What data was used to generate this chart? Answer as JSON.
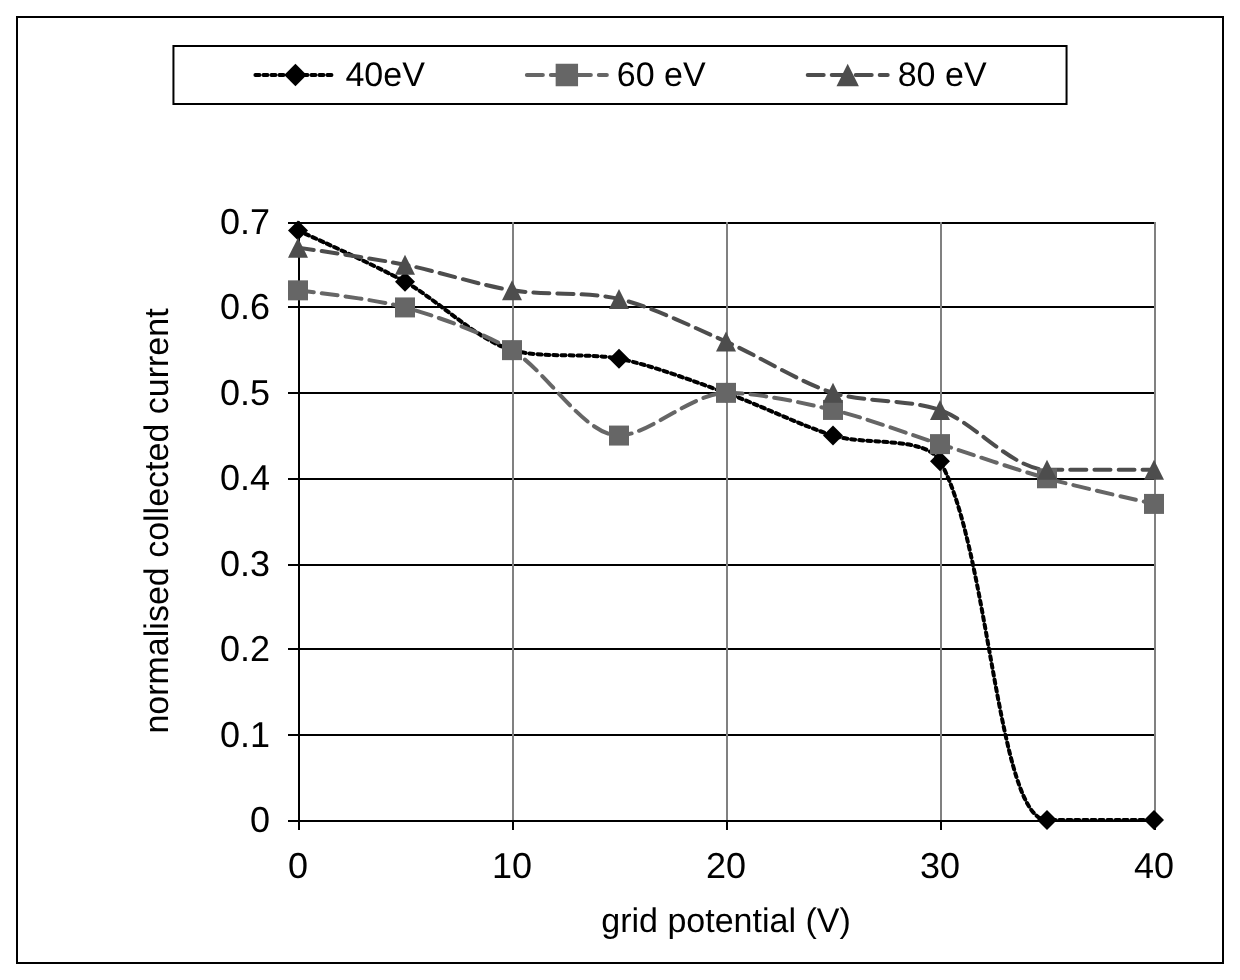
{
  "chart_data": {
    "type": "line",
    "xlabel": "grid potential (V)",
    "ylabel": "normalised collected current",
    "x": [
      0,
      5,
      10,
      15,
      20,
      25,
      30,
      35,
      40
    ],
    "series": [
      {
        "name": "40eV",
        "color": "#000000",
        "marker": "diamond",
        "line_style": "dotted",
        "values": [
          0.69,
          0.63,
          0.55,
          0.54,
          0.5,
          0.45,
          0.42,
          0,
          0
        ]
      },
      {
        "name": "60 eV",
        "color": "#666666",
        "marker": "square",
        "line_style": "dashed",
        "values": [
          0.62,
          0.6,
          0.55,
          0.45,
          0.5,
          0.48,
          0.44,
          0.4,
          0.37
        ]
      },
      {
        "name": "80 eV",
        "color": "#4d4d4d",
        "marker": "triangle",
        "line_style": "dashed",
        "values": [
          0.67,
          0.65,
          0.62,
          0.61,
          0.56,
          0.5,
          0.48,
          0.41,
          0.41
        ]
      }
    ],
    "xlim": [
      0,
      40
    ],
    "xticks": [
      0,
      10,
      20,
      30,
      40
    ],
    "ylim": [
      0,
      0.7
    ],
    "yticks": [
      0,
      0.1,
      0.2,
      0.3,
      0.4,
      0.5,
      0.6,
      0.7
    ],
    "grid": true,
    "legend": "top"
  }
}
